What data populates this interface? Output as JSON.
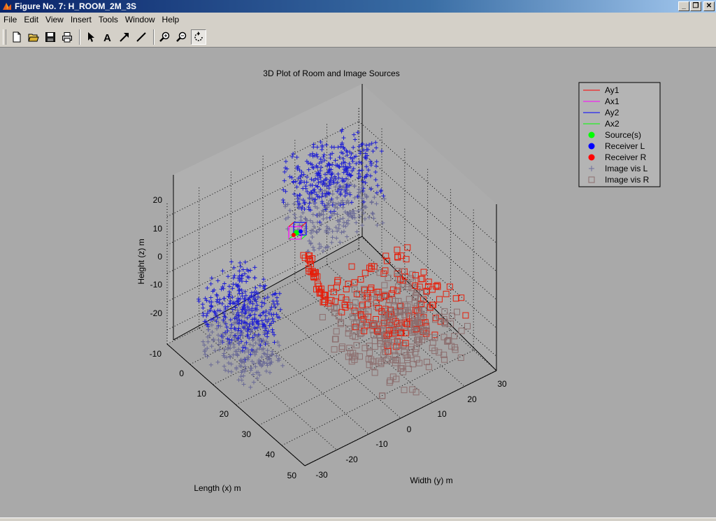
{
  "window": {
    "title": "Figure No. 7: H_ROOM_2M_3S",
    "buttons": [
      "minimize",
      "maximize",
      "close"
    ]
  },
  "menu": [
    {
      "label": "File"
    },
    {
      "label": "Edit"
    },
    {
      "label": "View"
    },
    {
      "label": "Insert"
    },
    {
      "label": "Tools"
    },
    {
      "label": "Window"
    },
    {
      "label": "Help"
    }
  ],
  "toolbar": {
    "icons": [
      "new-file-icon",
      "open-folder-icon",
      "save-icon",
      "print-icon",
      "select-arrow-icon",
      "text-icon",
      "arrow-icon",
      "line-icon",
      "zoom-in-icon",
      "zoom-out-icon",
      "rotate-3d-icon"
    ],
    "active": "rotate-3d-icon"
  },
  "chart_data": {
    "type": "scatter3d",
    "title": "3D Plot of Room and Image Sources",
    "xlabel": "Length (x) m",
    "ylabel": "Width (y) m",
    "zlabel": "Height (z) m",
    "x_ticks": [
      "-10",
      "0",
      "10",
      "20",
      "30",
      "40",
      "50"
    ],
    "y_ticks": [
      "-30",
      "-20",
      "-10",
      "0",
      "10",
      "20",
      "30"
    ],
    "z_ticks": [
      "-20",
      "-10",
      "0",
      "10",
      "20"
    ],
    "xlim": [
      -10,
      50
    ],
    "ylim": [
      -30,
      30
    ],
    "zlim": [
      -25,
      25
    ],
    "grid": true,
    "legend_position": "top-right, outside axes",
    "legend": [
      {
        "label": "Ay1",
        "marker": "line",
        "color": "#ff0000"
      },
      {
        "label": "Ax1",
        "marker": "line",
        "color": "#ff00ff"
      },
      {
        "label": "Ay2",
        "marker": "line",
        "color": "#0000ff"
      },
      {
        "label": "Ax2",
        "marker": "line",
        "color": "#00ff00"
      },
      {
        "label": "Source(s)",
        "marker": "dot",
        "color": "#00ff00"
      },
      {
        "label": "Receiver L",
        "marker": "dot",
        "color": "#0000ff"
      },
      {
        "label": "Receiver R",
        "marker": "dot",
        "color": "#ff0000"
      },
      {
        "label": "Image vis L",
        "marker": "plus",
        "color": "#6e6e9e"
      },
      {
        "label": "Image vis R",
        "marker": "square",
        "color": "#8c6e6e"
      }
    ],
    "series": [
      {
        "name": "Image vis L",
        "marker": "plus",
        "colors": [
          "#1e1ed2",
          "#6a6a96"
        ],
        "clusters": [
          {
            "x": [
              0,
              20
            ],
            "y": [
              -28,
              -14
            ],
            "z": [
              -22,
              5
            ]
          },
          {
            "x": [
              -10,
              5
            ],
            "y": [
              5,
              28
            ],
            "z": [
              -5,
              22
            ]
          }
        ]
      },
      {
        "name": "Image vis R",
        "marker": "square",
        "colors": [
          "#e61e0a",
          "#8c6e6e"
        ],
        "clusters": [
          {
            "x": [
              15,
              45
            ],
            "y": [
              0,
              25
            ],
            "z": [
              -25,
              0
            ]
          }
        ]
      },
      {
        "name": "Room",
        "marker": "box",
        "x": [
          0,
          2
        ],
        "y": [
          0,
          2
        ],
        "z": [
          0,
          2
        ]
      }
    ]
  }
}
